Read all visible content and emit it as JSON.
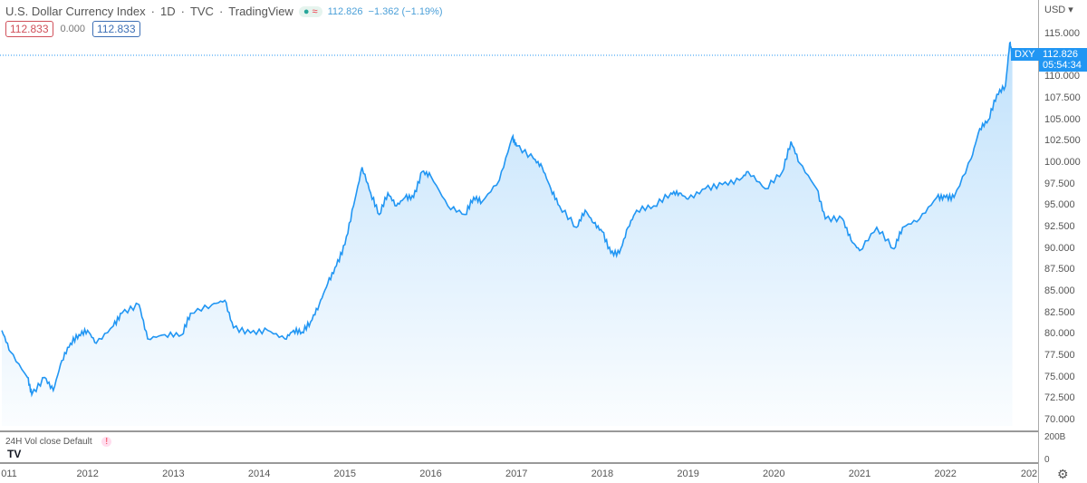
{
  "header": {
    "title": "U.S. Dollar Currency Index",
    "interval": "1D",
    "exchange": "TVC",
    "source": "TradingView",
    "status_dot": "●",
    "status_eq": "≈",
    "last": "112.826",
    "change": "−1.362 (−1.19%)",
    "box1": "112.833",
    "mid": "0.000",
    "box2": "112.833",
    "sep": "·"
  },
  "axis": {
    "currency": "USD ▾",
    "symbol": "DXY",
    "price": "112.826",
    "countdown": "05:54:34"
  },
  "volume": {
    "label": "24H Vol close Default",
    "warn": "!",
    "scale_top": "200B",
    "scale_bottom": "0"
  },
  "colors": {
    "line": "#2196f3",
    "fill": "#2196f3"
  },
  "chart_data": {
    "type": "line",
    "title": "U.S. Dollar Currency Index",
    "ylim": [
      70,
      115
    ],
    "yticks": [
      "115.000",
      "110.000",
      "107.500",
      "105.000",
      "102.500",
      "100.000",
      "97.500",
      "95.000",
      "92.500",
      "90.000",
      "87.500",
      "85.000",
      "82.500",
      "80.000",
      "77.500",
      "75.000",
      "72.500",
      "70.000"
    ],
    "xticks": [
      "011",
      "2012",
      "2013",
      "2014",
      "2015",
      "2016",
      "2017",
      "2018",
      "2019",
      "2020",
      "2021",
      "2022",
      "202"
    ],
    "x": [
      2011.0,
      2011.1,
      2011.3,
      2011.35,
      2011.5,
      2011.6,
      2011.7,
      2011.8,
      2011.9,
      2012.0,
      2012.1,
      2012.3,
      2012.4,
      2012.6,
      2012.7,
      2012.9,
      2013.1,
      2013.2,
      2013.45,
      2013.6,
      2013.7,
      2013.9,
      2014.1,
      2014.3,
      2014.4,
      2014.5,
      2014.6,
      2014.7,
      2014.8,
      2014.9,
      2015.0,
      2015.1,
      2015.2,
      2015.3,
      2015.4,
      2015.5,
      2015.6,
      2015.7,
      2015.8,
      2015.9,
      2016.0,
      2016.2,
      2016.4,
      2016.5,
      2016.6,
      2016.8,
      2016.95,
      2017.0,
      2017.2,
      2017.3,
      2017.4,
      2017.5,
      2017.7,
      2017.8,
      2017.9,
      2018.0,
      2018.1,
      2018.2,
      2018.3,
      2018.4,
      2018.6,
      2018.8,
      2018.9,
      2019.0,
      2019.2,
      2019.4,
      2019.6,
      2019.7,
      2019.9,
      2020.1,
      2020.2,
      2020.3,
      2020.5,
      2020.6,
      2020.8,
      2020.9,
      2021.0,
      2021.2,
      2021.4,
      2021.5,
      2021.7,
      2021.9,
      2022.0,
      2022.1,
      2022.3,
      2022.4,
      2022.5,
      2022.6,
      2022.7,
      2022.75,
      2022.78
    ],
    "y": [
      80.5,
      78,
      75,
      73,
      75,
      73.5,
      77,
      79,
      80,
      80.5,
      79,
      81,
      82.5,
      83.5,
      79.5,
      80,
      80,
      82.5,
      83.5,
      84,
      80.8,
      80.2,
      80.5,
      79.5,
      80.5,
      80.3,
      81.5,
      83.5,
      86,
      88,
      90.5,
      95,
      99.5,
      96.5,
      94,
      96.5,
      95,
      96,
      96,
      99,
      98.5,
      95,
      94,
      96,
      95.5,
      98,
      103,
      102,
      100.5,
      99.5,
      97,
      95,
      92.5,
      94.5,
      93,
      92,
      89.5,
      89.5,
      92.5,
      94.5,
      95,
      96.5,
      96.5,
      95.8,
      97,
      97.5,
      98,
      99,
      97,
      99,
      102.5,
      100,
      97,
      93.5,
      93.5,
      91,
      89.8,
      92.5,
      90,
      92.5,
      93.5,
      96,
      96,
      96,
      100.5,
      104,
      105,
      108,
      109,
      114,
      112.8
    ]
  }
}
